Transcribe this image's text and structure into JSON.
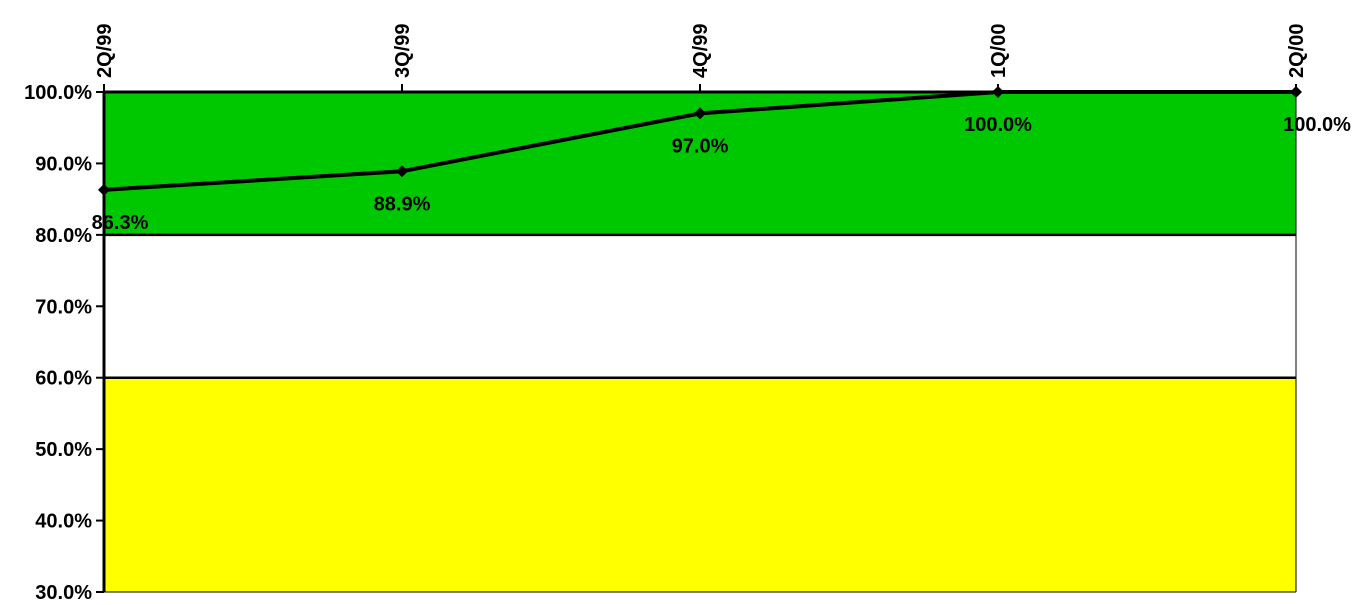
{
  "chart_data": {
    "type": "line",
    "categories": [
      "2Q/99",
      "3Q/99",
      "4Q/99",
      "1Q/00",
      "2Q/00"
    ],
    "series": [
      {
        "values": [
          86.3,
          88.9,
          97.0,
          100.0,
          100.0
        ],
        "data_labels": [
          "86.3%",
          "88.9%",
          "97.0%",
          "100.0%",
          "100.0%"
        ]
      }
    ],
    "ylim": [
      30,
      100
    ],
    "yticks": [
      30,
      40,
      50,
      60,
      70,
      80,
      90,
      100
    ],
    "ytick_labels": [
      "30.0%",
      "40.0%",
      "50.0%",
      "60.0%",
      "70.0%",
      "80.0%",
      "90.0%",
      "100.0%"
    ],
    "x_axis_position": "top",
    "x_tick_label_rotation": "vertical",
    "title": "",
    "xlabel": "",
    "ylabel": "",
    "bands": [
      {
        "from": 80,
        "to": 100,
        "color": "#00c800"
      },
      {
        "from": 60,
        "to": 80,
        "color": "#ffffff"
      },
      {
        "from": 30,
        "to": 60,
        "color": "#ffff00"
      }
    ],
    "line_color": "#000000",
    "grid": false
  }
}
